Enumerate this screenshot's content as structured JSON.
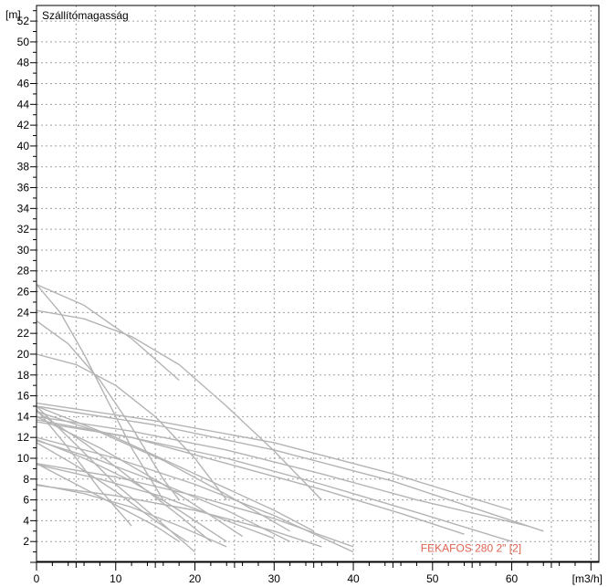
{
  "chart_data": {
    "type": "line",
    "title": "",
    "xlabel": "",
    "ylabel": "Szállítómagasság",
    "x_unit": "[m3/h]",
    "y_unit": "[m]",
    "xlim": [
      0,
      71
    ],
    "ylim": [
      0,
      53.5
    ],
    "x_ticks": [
      0,
      10,
      20,
      30,
      40,
      50,
      60
    ],
    "y_ticks": [
      2,
      4,
      6,
      8,
      10,
      12,
      14,
      16,
      18,
      20,
      22,
      24,
      26,
      28,
      30,
      32,
      34,
      36,
      38,
      40,
      42,
      44,
      46,
      48,
      50,
      52
    ],
    "grid": true,
    "annotation": {
      "text": "FEKAFOS 280 2\" [2]",
      "x": 48.5,
      "y": 1.0
    },
    "colors": {
      "curve": "#b4b4b4",
      "highlight": "#dc6450",
      "grid": "#a0a0a0",
      "axis": "#000000"
    },
    "series": [
      {
        "x": [
          0,
          6,
          12,
          18
        ],
        "y": [
          26.7,
          24.7,
          21.5,
          17.5
        ]
      },
      {
        "x": [
          0,
          6,
          12,
          18,
          24,
          30,
          36
        ],
        "y": [
          24.2,
          23.4,
          21.7,
          19.0,
          15.0,
          10.7,
          6.0
        ]
      },
      {
        "x": [
          0,
          5,
          10,
          15,
          20,
          24
        ],
        "y": [
          20.0,
          19.0,
          17.0,
          14.0,
          10.0,
          6.0
        ]
      },
      {
        "x": [
          0,
          4,
          8,
          12,
          16,
          18
        ],
        "y": [
          23.2,
          21.0,
          17.5,
          13.0,
          8.0,
          6.0
        ]
      },
      {
        "x": [
          0,
          3,
          6,
          9,
          12,
          16
        ],
        "y": [
          26.7,
          24.0,
          20.0,
          15.5,
          11.0,
          6.0
        ]
      },
      {
        "x": [
          0,
          15,
          30,
          45,
          60
        ],
        "y": [
          15.3,
          13.6,
          11.5,
          8.5,
          5.0
        ]
      },
      {
        "x": [
          0,
          15,
          30,
          45,
          64
        ],
        "y": [
          15.0,
          13.2,
          10.8,
          7.8,
          3.0
        ]
      },
      {
        "x": [
          0,
          12,
          24,
          36,
          48,
          62
        ],
        "y": [
          14.0,
          12.6,
          10.8,
          8.5,
          6.0,
          3.5
        ]
      },
      {
        "x": [
          0,
          12,
          24,
          36,
          48,
          60
        ],
        "y": [
          13.5,
          12.0,
          10.0,
          7.5,
          4.8,
          2.0
        ]
      },
      {
        "x": [
          0,
          12,
          24,
          36,
          46,
          54
        ],
        "y": [
          13.7,
          12.0,
          9.5,
          7.0,
          4.7,
          2.7
        ]
      },
      {
        "x": [
          0,
          10,
          20,
          30,
          35
        ],
        "y": [
          15.0,
          12.0,
          8.5,
          5.0,
          3.0
        ]
      },
      {
        "x": [
          0,
          8,
          16,
          24,
          32
        ],
        "y": [
          14.5,
          12.5,
          9.8,
          6.5,
          3.0
        ]
      },
      {
        "x": [
          0,
          8,
          16,
          24,
          26
        ],
        "y": [
          14.0,
          11.0,
          7.5,
          3.5,
          2.5
        ]
      },
      {
        "x": [
          0,
          6,
          12,
          18,
          22
        ],
        "y": [
          14.5,
          11.5,
          8.0,
          4.5,
          2.0
        ]
      },
      {
        "x": [
          0,
          5,
          10,
          15,
          20
        ],
        "y": [
          15.0,
          11.3,
          7.5,
          4.3,
          1.0
        ]
      },
      {
        "x": [
          0,
          4,
          8,
          12
        ],
        "y": [
          14.7,
          11.0,
          7.0,
          3.5
        ]
      },
      {
        "x": [
          0,
          10,
          20,
          30,
          40
        ],
        "y": [
          12.0,
          10.0,
          7.5,
          4.5,
          1.0
        ]
      },
      {
        "x": [
          0,
          8,
          16,
          24,
          32
        ],
        "y": [
          11.7,
          9.8,
          7.5,
          5.0,
          2.0
        ]
      },
      {
        "x": [
          0,
          6,
          12,
          18,
          24
        ],
        "y": [
          11.8,
          10.0,
          7.8,
          5.0,
          2.0
        ]
      },
      {
        "x": [
          0,
          5,
          10,
          15,
          19
        ],
        "y": [
          11.5,
          9.3,
          6.8,
          4.0,
          2.0
        ]
      },
      {
        "x": [
          0,
          10,
          20,
          30,
          40
        ],
        "y": [
          9.5,
          8.2,
          6.4,
          4.2,
          1.5
        ]
      },
      {
        "x": [
          0,
          8,
          16,
          24,
          30
        ],
        "y": [
          9.4,
          8.0,
          6.3,
          4.0,
          2.3
        ]
      },
      {
        "x": [
          0,
          5,
          10,
          15,
          18
        ],
        "y": [
          9.5,
          7.5,
          5.5,
          3.5,
          2.0
        ]
      },
      {
        "x": [
          0,
          10,
          20,
          30,
          36
        ],
        "y": [
          7.4,
          6.4,
          5.0,
          3.0,
          1.5
        ]
      },
      {
        "x": [
          0,
          6,
          12,
          18,
          24
        ],
        "y": [
          7.5,
          6.6,
          5.3,
          3.5,
          1.5
        ]
      }
    ],
    "highlight_series": {
      "name": "FEKAFOS 280 2\" [2]",
      "x": [
        0,
        2
      ],
      "y": [
        0,
        0
      ]
    }
  }
}
